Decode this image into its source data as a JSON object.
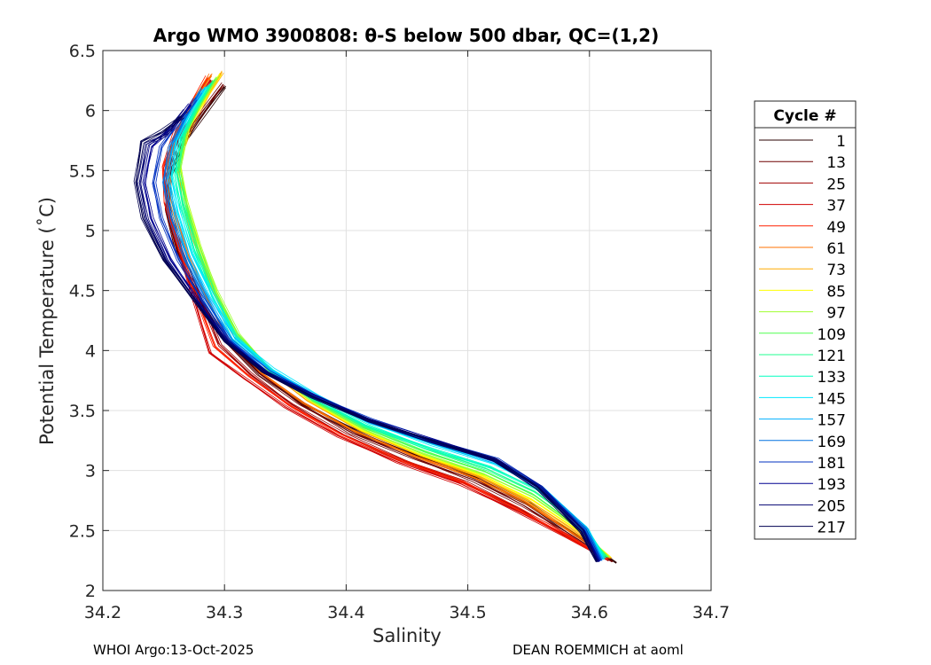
{
  "chart_data": {
    "type": "line",
    "title": "Argo WMO 3900808: θ-S below 500 dbar,  QC=(1,2)",
    "xlabel": "Salinity",
    "ylabel": "Potential Temperature (˚C)",
    "xlim": [
      34.2,
      34.7
    ],
    "ylim": [
      2,
      6.5
    ],
    "xticks": [
      34.2,
      34.3,
      34.4,
      34.5,
      34.6,
      34.7
    ],
    "yticks": [
      2,
      2.5,
      3,
      3.5,
      4,
      4.5,
      5,
      5.5,
      6,
      6.5
    ],
    "xtick_labels": [
      "34.2",
      "34.3",
      "34.4",
      "34.5",
      "34.6",
      "34.7"
    ],
    "ytick_labels": [
      "2",
      "2.5",
      "3",
      "3.5",
      "4",
      "4.5",
      "5",
      "5.5",
      "6",
      "6.5"
    ],
    "grid": true,
    "legend_title": "Cycle #",
    "legend_position": "outside-right",
    "series": [
      {
        "name": "1",
        "color": "#2a0000",
        "x": [
          34.3,
          34.285,
          34.268,
          34.255,
          34.253,
          34.262,
          34.278,
          34.3,
          34.33,
          34.365,
          34.41,
          34.46,
          34.51,
          34.55,
          34.59,
          34.622
        ],
        "y": [
          6.2,
          6.0,
          5.75,
          5.45,
          5.15,
          4.8,
          4.45,
          4.1,
          3.8,
          3.55,
          3.32,
          3.12,
          2.93,
          2.72,
          2.45,
          2.23
        ]
      },
      {
        "name": "13",
        "color": "#6e0000",
        "x": [
          34.299,
          34.284,
          34.267,
          34.254,
          34.252,
          34.261,
          34.277,
          34.298,
          34.328,
          34.362,
          34.405,
          34.455,
          34.505,
          34.546,
          34.587,
          34.619
        ],
        "y": [
          6.22,
          6.02,
          5.77,
          5.47,
          5.17,
          4.82,
          4.47,
          4.11,
          3.81,
          3.56,
          3.31,
          3.11,
          2.92,
          2.71,
          2.45,
          2.24
        ]
      },
      {
        "name": "25",
        "color": "#a00000",
        "x": [
          34.29,
          34.278,
          34.264,
          34.253,
          34.254,
          34.264,
          34.28,
          34.296,
          34.322,
          34.355,
          34.398,
          34.448,
          34.498,
          34.54,
          34.582,
          34.616
        ],
        "y": [
          6.25,
          6.05,
          5.8,
          5.5,
          5.2,
          4.85,
          4.45,
          4.05,
          3.8,
          3.55,
          3.3,
          3.08,
          2.9,
          2.69,
          2.45,
          2.25
        ]
      },
      {
        "name": "37",
        "color": "#d00000",
        "x": [
          34.287,
          34.275,
          34.261,
          34.25,
          34.252,
          34.262,
          34.275,
          34.288,
          34.316,
          34.35,
          34.393,
          34.443,
          34.494,
          34.537,
          34.58,
          34.614
        ],
        "y": [
          6.27,
          6.07,
          5.82,
          5.52,
          5.22,
          4.87,
          4.42,
          3.98,
          3.77,
          3.53,
          3.29,
          3.07,
          2.89,
          2.68,
          2.46,
          2.26
        ]
      },
      {
        "name": "49",
        "color": "#ff2000",
        "x": [
          34.286,
          34.274,
          34.26,
          34.25,
          34.252,
          34.262,
          34.276,
          34.292,
          34.32,
          34.354,
          34.396,
          34.446,
          34.497,
          34.539,
          34.581,
          34.615
        ],
        "y": [
          6.28,
          6.08,
          5.83,
          5.53,
          5.23,
          4.88,
          4.46,
          4.03,
          3.79,
          3.54,
          3.3,
          3.08,
          2.9,
          2.69,
          2.46,
          2.26
        ]
      },
      {
        "name": "61",
        "color": "#ff7000",
        "x": [
          34.289,
          34.277,
          34.263,
          34.253,
          34.256,
          34.266,
          34.282,
          34.302,
          34.33,
          34.364,
          34.406,
          34.456,
          34.506,
          34.547,
          34.588,
          34.617
        ],
        "y": [
          6.3,
          6.1,
          5.85,
          5.55,
          5.25,
          4.9,
          4.5,
          4.12,
          3.82,
          3.57,
          3.33,
          3.12,
          2.94,
          2.74,
          2.47,
          2.27
        ]
      },
      {
        "name": "73",
        "color": "#ffaa00",
        "x": [
          34.298,
          34.286,
          34.272,
          34.262,
          34.265,
          34.275,
          34.29,
          34.308,
          34.335,
          34.368,
          34.41,
          34.46,
          34.51,
          34.55,
          34.59,
          34.618
        ],
        "y": [
          6.32,
          6.12,
          5.87,
          5.57,
          5.27,
          4.92,
          4.52,
          4.14,
          3.84,
          3.58,
          3.34,
          3.13,
          2.95,
          2.75,
          2.48,
          2.27
        ]
      },
      {
        "name": "85",
        "color": "#ffff00",
        "x": [
          34.296,
          34.284,
          34.27,
          34.263,
          34.268,
          34.278,
          34.292,
          34.31,
          34.337,
          34.37,
          34.412,
          34.462,
          34.512,
          34.552,
          34.592,
          34.617
        ],
        "y": [
          6.3,
          6.1,
          5.85,
          5.55,
          5.25,
          4.9,
          4.5,
          4.14,
          3.84,
          3.58,
          3.34,
          3.13,
          2.96,
          2.76,
          2.49,
          2.28
        ]
      },
      {
        "name": "97",
        "color": "#a0ff30",
        "x": [
          34.294,
          34.282,
          34.269,
          34.263,
          34.269,
          34.279,
          34.293,
          34.311,
          34.338,
          34.371,
          34.413,
          34.463,
          34.513,
          34.553,
          34.593,
          34.616
        ],
        "y": [
          6.28,
          6.08,
          5.83,
          5.53,
          5.23,
          4.88,
          4.5,
          4.14,
          3.84,
          3.59,
          3.35,
          3.14,
          2.97,
          2.78,
          2.5,
          2.28
        ]
      },
      {
        "name": "109",
        "color": "#50ff50",
        "x": [
          34.292,
          34.28,
          34.268,
          34.262,
          34.268,
          34.278,
          34.292,
          34.31,
          34.338,
          34.372,
          34.414,
          34.464,
          34.514,
          34.554,
          34.594,
          34.615
        ],
        "y": [
          6.26,
          6.06,
          5.81,
          5.51,
          5.21,
          4.86,
          4.48,
          4.13,
          3.84,
          3.59,
          3.36,
          3.16,
          2.99,
          2.8,
          2.51,
          2.28
        ]
      },
      {
        "name": "121",
        "color": "#20ff90",
        "x": [
          34.29,
          34.278,
          34.266,
          34.261,
          34.267,
          34.277,
          34.291,
          34.309,
          34.337,
          34.372,
          34.415,
          34.466,
          34.516,
          34.556,
          34.596,
          34.614
        ],
        "y": [
          6.24,
          6.04,
          5.79,
          5.49,
          5.19,
          4.84,
          4.47,
          4.12,
          3.84,
          3.6,
          3.37,
          3.18,
          3.01,
          2.82,
          2.52,
          2.28
        ]
      },
      {
        "name": "133",
        "color": "#00ffc0",
        "x": [
          34.288,
          34.276,
          34.264,
          34.259,
          34.265,
          34.275,
          34.29,
          34.308,
          34.337,
          34.372,
          34.416,
          34.467,
          34.518,
          34.558,
          34.597,
          34.613
        ],
        "y": [
          6.22,
          6.02,
          5.77,
          5.47,
          5.17,
          4.82,
          4.46,
          4.11,
          3.84,
          3.61,
          3.38,
          3.19,
          3.03,
          2.84,
          2.52,
          2.27
        ]
      },
      {
        "name": "145",
        "color": "#00e8ff",
        "x": [
          34.285,
          34.273,
          34.261,
          34.256,
          34.262,
          34.273,
          34.29,
          34.31,
          34.34,
          34.376,
          34.42,
          34.47,
          34.522,
          34.56,
          34.598,
          34.612
        ],
        "y": [
          6.2,
          6.0,
          5.75,
          5.45,
          5.15,
          4.8,
          4.45,
          4.1,
          3.84,
          3.62,
          3.4,
          3.22,
          3.06,
          2.86,
          2.52,
          2.26
        ]
      },
      {
        "name": "157",
        "color": "#00b0ff",
        "x": [
          34.282,
          34.27,
          34.258,
          34.253,
          34.259,
          34.27,
          34.287,
          34.307,
          34.338,
          34.375,
          34.42,
          34.471,
          34.523,
          34.56,
          34.597,
          34.611
        ],
        "y": [
          6.18,
          5.98,
          5.73,
          5.43,
          5.13,
          4.78,
          4.43,
          4.09,
          3.83,
          3.62,
          3.41,
          3.23,
          3.07,
          2.86,
          2.51,
          2.26
        ]
      },
      {
        "name": "169",
        "color": "#0070e0",
        "x": [
          34.28,
          34.268,
          34.255,
          34.25,
          34.256,
          34.268,
          34.285,
          34.305,
          34.336,
          34.374,
          34.42,
          34.471,
          34.523,
          34.56,
          34.597,
          34.61
        ],
        "y": [
          6.15,
          5.95,
          5.7,
          5.4,
          5.1,
          4.76,
          4.42,
          4.08,
          3.82,
          3.62,
          3.41,
          3.24,
          3.08,
          2.86,
          2.51,
          2.25
        ]
      },
      {
        "name": "181",
        "color": "#0030c0",
        "x": [
          34.276,
          34.262,
          34.248,
          34.242,
          34.248,
          34.262,
          34.282,
          34.304,
          34.336,
          34.374,
          34.42,
          34.472,
          34.524,
          34.56,
          34.596,
          34.609
        ],
        "y": [
          6.1,
          5.9,
          5.7,
          5.4,
          5.1,
          4.76,
          4.42,
          4.08,
          3.82,
          3.62,
          3.42,
          3.25,
          3.09,
          2.86,
          2.5,
          2.25
        ]
      },
      {
        "name": "193",
        "color": "#000090",
        "x": [
          34.272,
          34.256,
          34.24,
          34.234,
          34.24,
          34.255,
          34.278,
          34.302,
          34.334,
          34.373,
          34.419,
          34.471,
          34.523,
          34.559,
          34.595,
          34.608
        ],
        "y": [
          6.05,
          5.85,
          5.7,
          5.4,
          5.1,
          4.76,
          4.42,
          4.08,
          3.82,
          3.62,
          3.42,
          3.25,
          3.09,
          2.86,
          2.5,
          2.24
        ]
      },
      {
        "name": "205",
        "color": "#000070",
        "x": [
          34.268,
          34.252,
          34.236,
          34.23,
          34.236,
          34.252,
          34.276,
          34.301,
          34.333,
          34.372,
          34.418,
          34.47,
          34.522,
          34.558,
          34.594,
          34.607
        ],
        "y": [
          6.0,
          5.8,
          5.72,
          5.4,
          5.1,
          4.76,
          4.42,
          4.08,
          3.82,
          3.62,
          3.42,
          3.25,
          3.09,
          2.86,
          2.49,
          2.24
        ]
      },
      {
        "name": "217",
        "color": "#000050",
        "x": [
          34.265,
          34.248,
          34.232,
          34.227,
          34.233,
          34.25,
          34.275,
          34.3,
          34.332,
          34.371,
          34.417,
          34.469,
          34.521,
          34.557,
          34.593,
          34.606
        ],
        "y": [
          5.95,
          5.82,
          5.74,
          5.4,
          5.1,
          4.76,
          4.42,
          4.08,
          3.82,
          3.62,
          3.42,
          3.25,
          3.09,
          2.86,
          2.49,
          2.24
        ]
      }
    ]
  },
  "footer": {
    "left": "WHOI Argo:13-Oct-2025",
    "right": "DEAN ROEMMICH at aoml"
  }
}
